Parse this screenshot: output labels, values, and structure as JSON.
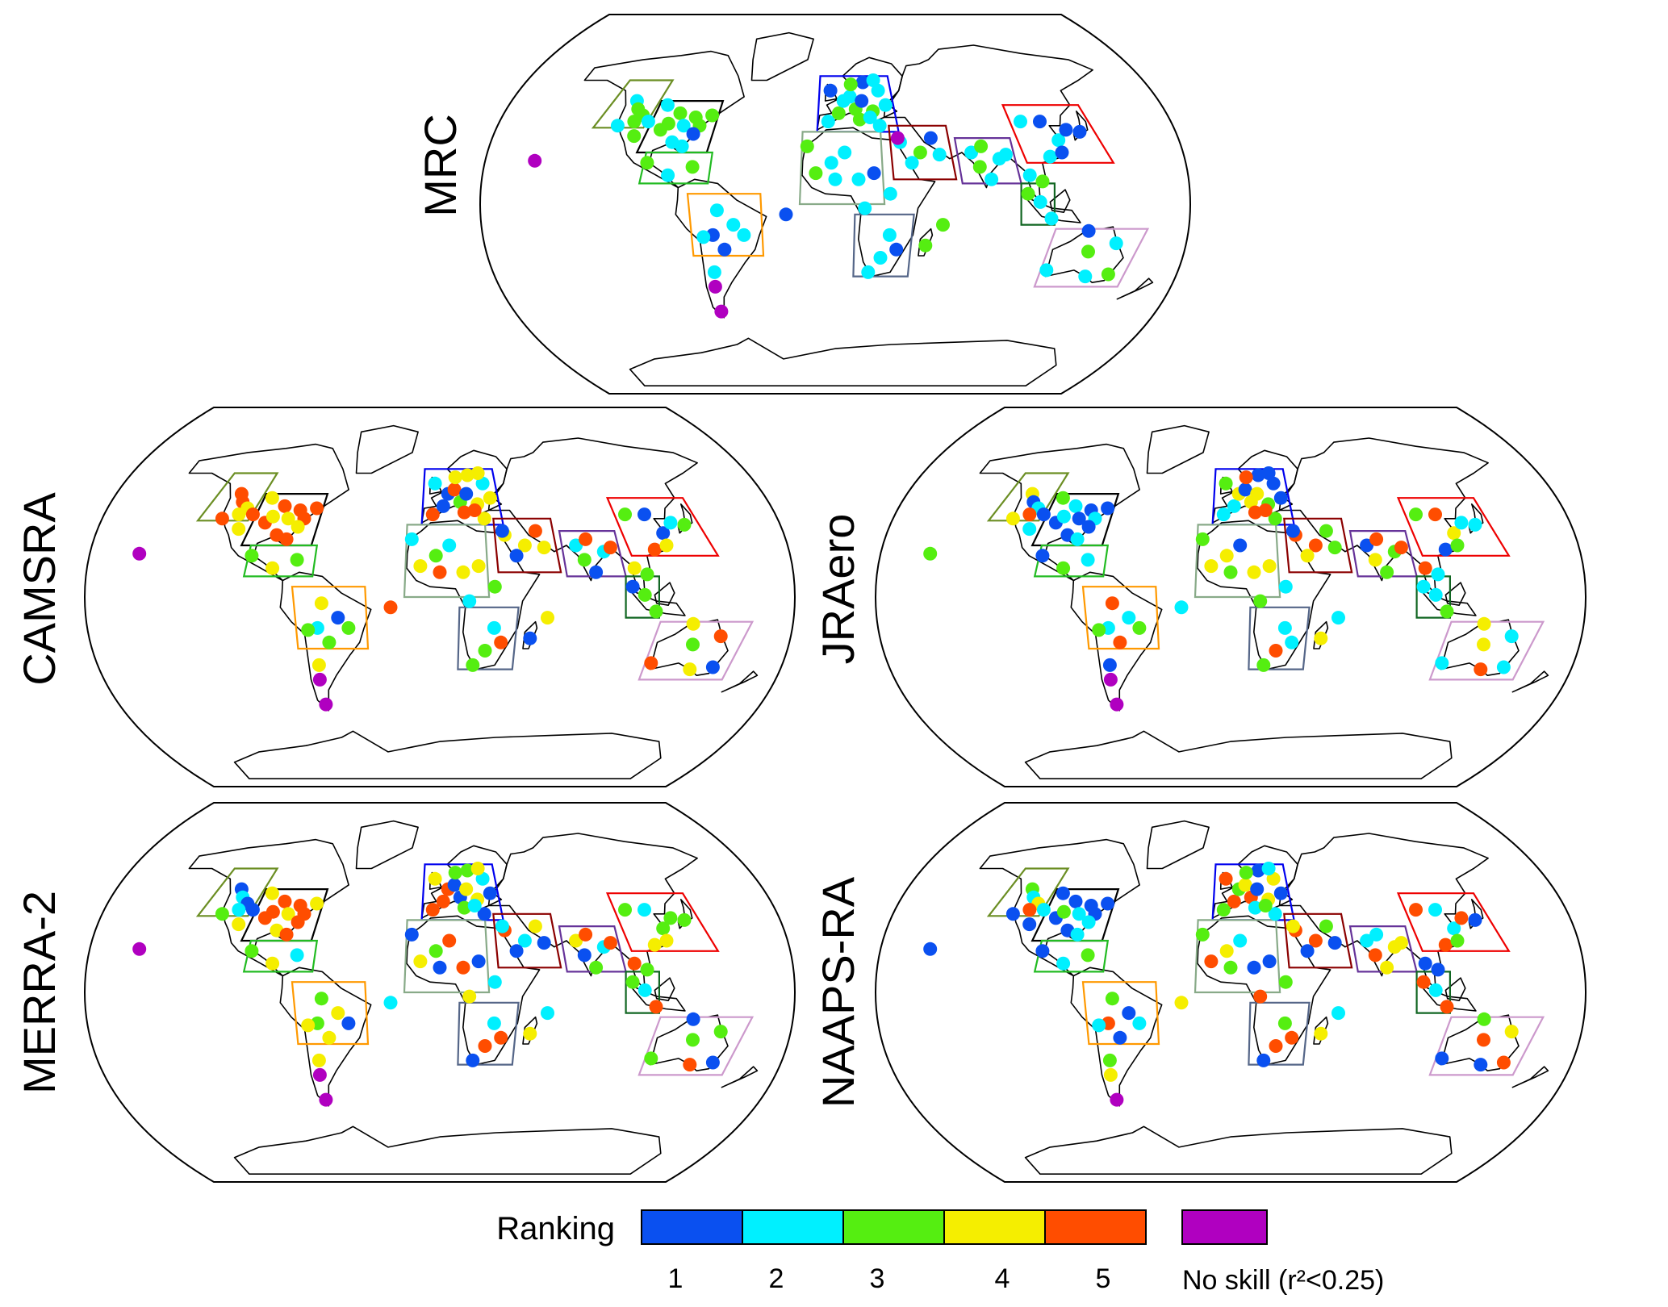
{
  "colors": {
    "rank_1": "#0a50f0",
    "rank_2": "#00f0ff",
    "rank_3": "#55ee11",
    "rank_4": "#f5ee00",
    "rank_5": "#ff4d00",
    "no_skill": "#b000c0"
  },
  "panels": [
    {
      "id": "mrc",
      "label": "MRC"
    },
    {
      "id": "camsra",
      "label": "CAMSRA"
    },
    {
      "id": "jraero",
      "label": "JRAero"
    },
    {
      "id": "merra2",
      "label": "MERRA-2"
    },
    {
      "id": "naapsra",
      "label": "NAAPS-RA"
    }
  ],
  "legend": {
    "title": "Ranking",
    "ranks": [
      "1",
      "2",
      "3",
      "4",
      "5"
    ],
    "no_skill_label": "No skill (r²<0.25)"
  },
  "regions": [
    {
      "name": "western-north-america",
      "color": "#6b8e23"
    },
    {
      "name": "eastern-north-america",
      "color": "#000000"
    },
    {
      "name": "central-america",
      "color": "#22bb22"
    },
    {
      "name": "south-america",
      "color": "#ff9900"
    },
    {
      "name": "europe",
      "color": "#0000ee"
    },
    {
      "name": "north-africa",
      "color": "#88aa88"
    },
    {
      "name": "southern-africa",
      "color": "#556688"
    },
    {
      "name": "middle-east",
      "color": "#8b0000"
    },
    {
      "name": "india",
      "color": "#663399"
    },
    {
      "name": "east-asia",
      "color": "#ee0000"
    },
    {
      "name": "southeast-asia",
      "color": "#116622"
    },
    {
      "name": "australia",
      "color": "#cc99cc"
    }
  ]
}
